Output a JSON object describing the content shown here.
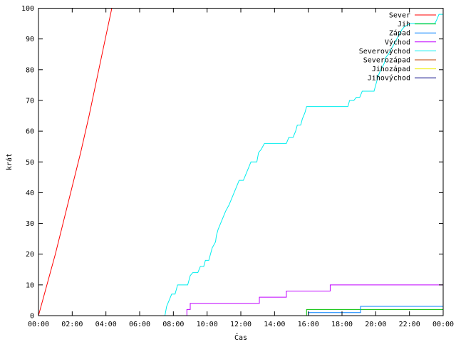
{
  "chart_data": {
    "type": "line",
    "xlabel": "Čas",
    "ylabel": "krát",
    "xlim": [
      0,
      24
    ],
    "ylim": [
      0,
      100
    ],
    "x_ticks": [
      {
        "value": 0,
        "label": "00:00"
      },
      {
        "value": 2,
        "label": "02:00"
      },
      {
        "value": 4,
        "label": "04:00"
      },
      {
        "value": 6,
        "label": "06:00"
      },
      {
        "value": 8,
        "label": "08:00"
      },
      {
        "value": 10,
        "label": "10:00"
      },
      {
        "value": 12,
        "label": "12:00"
      },
      {
        "value": 14,
        "label": "14:00"
      },
      {
        "value": 16,
        "label": "16:00"
      },
      {
        "value": 18,
        "label": "18:00"
      },
      {
        "value": 20,
        "label": "20:00"
      },
      {
        "value": 22,
        "label": "22:00"
      },
      {
        "value": 24,
        "label": "00:00"
      }
    ],
    "y_ticks": [
      0,
      10,
      20,
      30,
      40,
      50,
      60,
      70,
      80,
      90,
      100
    ],
    "grid": false,
    "legend_position": "top-right",
    "series": [
      {
        "name": "Sever",
        "color": "#ff0000",
        "points": [
          [
            0,
            0
          ],
          [
            0.5,
            10
          ],
          [
            1,
            20
          ],
          [
            1.5,
            31
          ],
          [
            2,
            42
          ],
          [
            2.5,
            53
          ],
          [
            3,
            65
          ],
          [
            3.5,
            78
          ],
          [
            4,
            91
          ],
          [
            4.35,
            100
          ]
        ]
      },
      {
        "name": "Jih",
        "color": "#00c000",
        "points": [
          [
            0,
            0
          ],
          [
            15.9,
            0
          ],
          [
            15.9,
            2
          ],
          [
            24,
            2
          ]
        ]
      },
      {
        "name": "Západ",
        "color": "#0080ff",
        "points": [
          [
            0,
            0
          ],
          [
            16.0,
            0
          ],
          [
            16.0,
            1
          ],
          [
            19.1,
            1
          ],
          [
            19.1,
            3
          ],
          [
            24,
            3
          ]
        ]
      },
      {
        "name": "Východ",
        "color": "#c000ff",
        "points": [
          [
            0,
            0
          ],
          [
            8.8,
            0
          ],
          [
            8.8,
            2
          ],
          [
            9.0,
            2
          ],
          [
            9.0,
            4
          ],
          [
            13.1,
            4
          ],
          [
            13.1,
            6
          ],
          [
            14.7,
            6
          ],
          [
            14.7,
            8
          ],
          [
            17.3,
            8
          ],
          [
            17.3,
            10
          ],
          [
            24,
            10
          ]
        ]
      },
      {
        "name": "Severovýchod",
        "color": "#00eeee",
        "points": [
          [
            0,
            0
          ],
          [
            7.5,
            0
          ],
          [
            7.6,
            3
          ],
          [
            7.75,
            5
          ],
          [
            7.9,
            7
          ],
          [
            8.1,
            7
          ],
          [
            8.25,
            10
          ],
          [
            8.85,
            10
          ],
          [
            9.0,
            13
          ],
          [
            9.15,
            14
          ],
          [
            9.45,
            14
          ],
          [
            9.6,
            16
          ],
          [
            9.8,
            16
          ],
          [
            9.9,
            18
          ],
          [
            10.1,
            18
          ],
          [
            10.2,
            20
          ],
          [
            10.3,
            22
          ],
          [
            10.5,
            24
          ],
          [
            10.55,
            26
          ],
          [
            10.65,
            28
          ],
          [
            10.8,
            30
          ],
          [
            10.95,
            32
          ],
          [
            11.1,
            34
          ],
          [
            11.3,
            36
          ],
          [
            11.45,
            38
          ],
          [
            11.6,
            40
          ],
          [
            11.75,
            42
          ],
          [
            11.9,
            44
          ],
          [
            12.15,
            44
          ],
          [
            12.3,
            46
          ],
          [
            12.45,
            48
          ],
          [
            12.6,
            50
          ],
          [
            12.95,
            50
          ],
          [
            13.05,
            53
          ],
          [
            13.2,
            54
          ],
          [
            13.4,
            56
          ],
          [
            14.7,
            56
          ],
          [
            14.85,
            58
          ],
          [
            15.1,
            58
          ],
          [
            15.25,
            60
          ],
          [
            15.35,
            62
          ],
          [
            15.55,
            62
          ],
          [
            15.65,
            64
          ],
          [
            15.8,
            66
          ],
          [
            15.9,
            68
          ],
          [
            18.35,
            68
          ],
          [
            18.45,
            70
          ],
          [
            18.7,
            70
          ],
          [
            18.85,
            71
          ],
          [
            19.05,
            71
          ],
          [
            19.2,
            73
          ],
          [
            19.9,
            73
          ],
          [
            20.0,
            75
          ],
          [
            20.15,
            78
          ],
          [
            20.3,
            80
          ],
          [
            20.5,
            82
          ],
          [
            20.6,
            84
          ],
          [
            20.75,
            85
          ],
          [
            20.85,
            86
          ],
          [
            21.05,
            88
          ],
          [
            21.25,
            90
          ],
          [
            21.55,
            93
          ],
          [
            21.7,
            94
          ],
          [
            22.05,
            95
          ],
          [
            23.5,
            95
          ],
          [
            23.6,
            96
          ],
          [
            23.75,
            98
          ],
          [
            24,
            98
          ]
        ]
      },
      {
        "name": "Severozápad",
        "color": "#c04000",
        "points": [
          [
            0,
            0
          ],
          [
            24,
            0
          ]
        ]
      },
      {
        "name": "Jihozápad",
        "color": "#eeee00",
        "points": [
          [
            0,
            0
          ],
          [
            24,
            0
          ]
        ]
      },
      {
        "name": "Jihovýchod",
        "color": "#000080",
        "points": [
          [
            0,
            0
          ],
          [
            24,
            0
          ]
        ]
      }
    ]
  }
}
